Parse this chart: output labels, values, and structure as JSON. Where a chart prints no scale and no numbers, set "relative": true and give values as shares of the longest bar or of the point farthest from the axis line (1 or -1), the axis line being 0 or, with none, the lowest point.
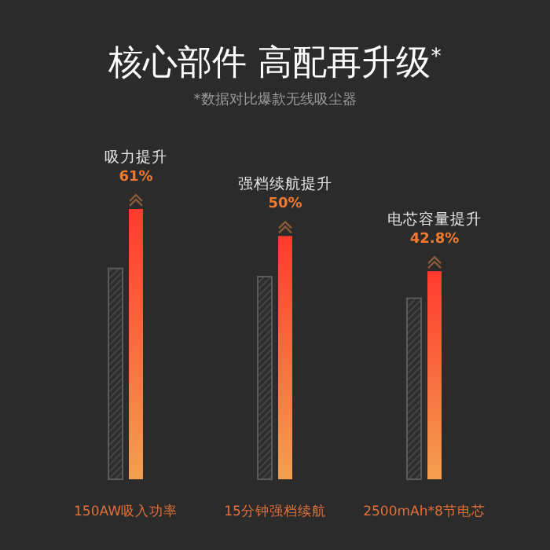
{
  "chart_data": {
    "type": "bar",
    "relative": true,
    "title": "核心部件 高配再升级$^{*}$",
    "subtitle": "*数据对比爆款无线吸尘器",
    "categories": [
      "150AW吸入功率",
      "15分钟强档续航",
      "2500mAh*8节电芯"
    ],
    "series": [
      {
        "color": "#4a4a4a",
        "values": [
          0.78,
          0.75,
          0.67
        ]
      },
      {
        "color": "#ff3a2e",
        "values": [
          1,
          0.9,
          0.77
        ]
      }
    ],
    "annotations": [
      {
        "text": "吸力提升",
        "x": "150AW吸入功率",
        "y": 1
      },
      {
        "text": "61%",
        "x": "150AW吸入功率",
        "y": 1
      },
      {
        "text": "强档续航提升",
        "x": "15分钟强档续航",
        "y": 0.9
      },
      {
        "text": "50%",
        "x": "15分钟强档续航",
        "y": 0.9
      },
      {
        "text": "电芯容量提升",
        "x": "2500mAh*8节电芯",
        "y": 0.77
      },
      {
        "text": "42.8%",
        "x": "2500mAh*8节电芯",
        "y": 0.77
      }
    ],
    "grid": false
  }
}
